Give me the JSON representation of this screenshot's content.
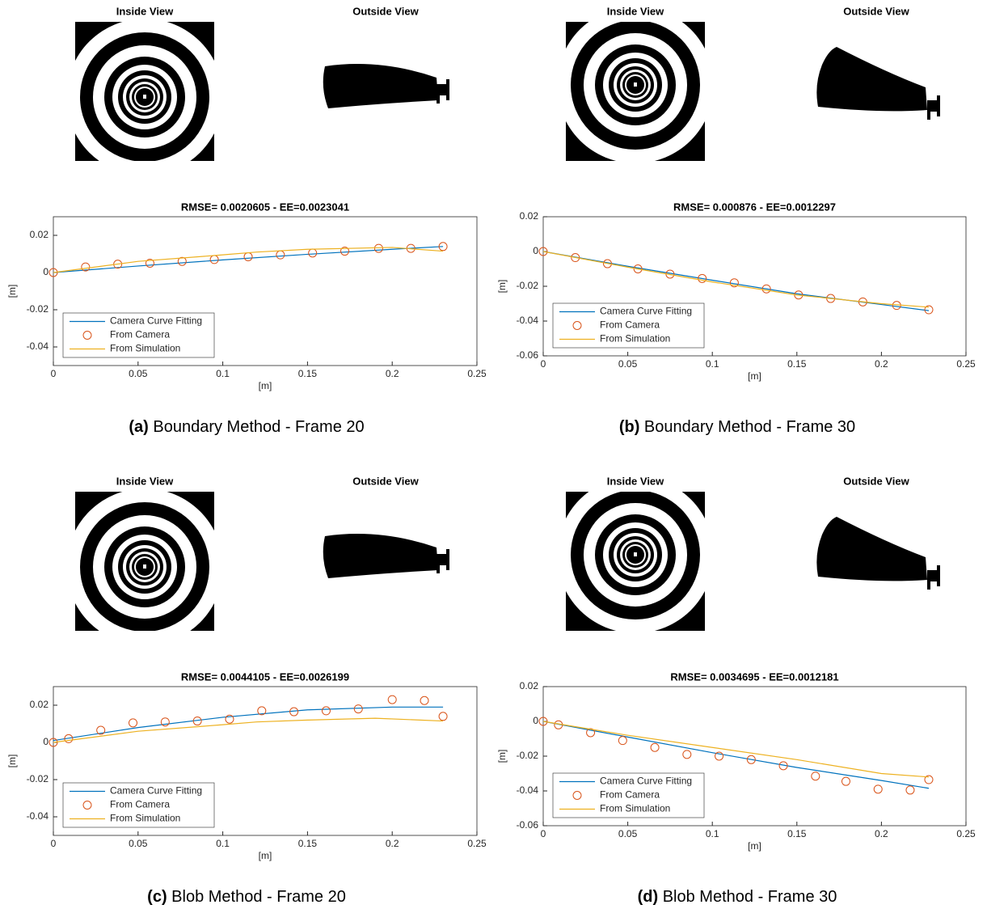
{
  "chart_data": [
    {
      "type": "line",
      "image_titles": [
        "Inside View",
        "Outside View"
      ],
      "title": "RMSE= 0.0020605 - EE=0.0023041",
      "xlabel": "[m]",
      "ylabel": "[m]",
      "xlim": [
        0,
        0.25
      ],
      "ylim": [
        -0.05,
        0.03
      ],
      "xticks": [
        0,
        0.05,
        0.1,
        0.15,
        0.2,
        0.25
      ],
      "yticks": [
        -0.04,
        -0.02,
        0,
        0.02
      ],
      "legend": "lower left",
      "series": [
        {
          "name": "Camera Curve Fitting",
          "mode": "line",
          "color": "#0072bd",
          "x": [
            0,
            0.05,
            0.1,
            0.15,
            0.2,
            0.23
          ],
          "values": [
            0,
            0.0035,
            0.0068,
            0.0098,
            0.0125,
            0.014
          ]
        },
        {
          "name": "From Camera",
          "mode": "markers",
          "color": "#d95319",
          "x": [
            0,
            0.019,
            0.038,
            0.057,
            0.076,
            0.095,
            0.115,
            0.134,
            0.153,
            0.172,
            0.192,
            0.211,
            0.23
          ],
          "values": [
            0,
            0.003,
            0.0045,
            0.005,
            0.006,
            0.007,
            0.0085,
            0.0095,
            0.0105,
            0.0115,
            0.013,
            0.013,
            0.014
          ]
        },
        {
          "name": "From Simulation",
          "mode": "line",
          "color": "#edb120",
          "x": [
            0,
            0.05,
            0.1,
            0.12,
            0.15,
            0.2,
            0.23
          ],
          "values": [
            0,
            0.006,
            0.0095,
            0.011,
            0.0125,
            0.0135,
            0.0115
          ]
        }
      ],
      "caption_label": "(a)",
      "caption": "Boundary Method - Frame 20"
    },
    {
      "type": "line",
      "image_titles": [
        "Inside View",
        "Outside View"
      ],
      "title": "RMSE= 0.000876 - EE=0.0012297",
      "xlabel": "[m]",
      "ylabel": "[m]",
      "xlim": [
        0,
        0.25
      ],
      "ylim": [
        -0.06,
        0.02
      ],
      "xticks": [
        0,
        0.05,
        0.1,
        0.15,
        0.2,
        0.25
      ],
      "yticks": [
        -0.06,
        -0.04,
        -0.02,
        0,
        0.02
      ],
      "legend": "lower left",
      "series": [
        {
          "name": "Camera Curve Fitting",
          "mode": "line",
          "color": "#0072bd",
          "x": [
            0,
            0.05,
            0.1,
            0.15,
            0.2,
            0.228
          ],
          "values": [
            0,
            -0.0085,
            -0.0165,
            -0.0243,
            -0.0305,
            -0.034
          ]
        },
        {
          "name": "From Camera",
          "mode": "markers",
          "color": "#d95319",
          "x": [
            0,
            0.019,
            0.038,
            0.056,
            0.075,
            0.094,
            0.113,
            0.132,
            0.151,
            0.17,
            0.189,
            0.209,
            0.228
          ],
          "values": [
            0,
            -0.0035,
            -0.007,
            -0.01,
            -0.013,
            -0.0155,
            -0.018,
            -0.0215,
            -0.025,
            -0.027,
            -0.029,
            -0.031,
            -0.0335
          ]
        },
        {
          "name": "From Simulation",
          "mode": "line",
          "color": "#edb120",
          "x": [
            0,
            0.05,
            0.1,
            0.15,
            0.2,
            0.228
          ],
          "values": [
            0,
            -0.009,
            -0.0175,
            -0.025,
            -0.03,
            -0.032
          ]
        }
      ],
      "caption_label": "(b)",
      "caption": "Boundary Method - Frame 30"
    },
    {
      "type": "line",
      "image_titles": [
        "Inside View",
        "Outside View"
      ],
      "title": "RMSE= 0.0044105 - EE=0.0026199",
      "xlabel": "[m]",
      "ylabel": "[m]",
      "xlim": [
        0,
        0.25
      ],
      "ylim": [
        -0.05,
        0.03
      ],
      "xticks": [
        0,
        0.05,
        0.1,
        0.15,
        0.2,
        0.25
      ],
      "yticks": [
        -0.04,
        -0.02,
        0,
        0.02
      ],
      "legend": "lower left",
      "series": [
        {
          "name": "Camera Curve Fitting",
          "mode": "line",
          "color": "#0072bd",
          "x": [
            0,
            0.05,
            0.1,
            0.15,
            0.2,
            0.23
          ],
          "values": [
            0.001,
            0.008,
            0.0135,
            0.0175,
            0.019,
            0.019
          ]
        },
        {
          "name": "From Camera",
          "mode": "markers",
          "color": "#d95319",
          "x": [
            0,
            0.009,
            0.028,
            0.047,
            0.066,
            0.085,
            0.104,
            0.123,
            0.142,
            0.161,
            0.18,
            0.2,
            0.219,
            0.23
          ],
          "values": [
            0,
            0.002,
            0.0065,
            0.0105,
            0.011,
            0.0115,
            0.0125,
            0.017,
            0.0165,
            0.017,
            0.018,
            0.023,
            0.0225,
            0.014
          ]
        },
        {
          "name": "From Simulation",
          "mode": "line",
          "color": "#edb120",
          "x": [
            0,
            0.05,
            0.1,
            0.12,
            0.15,
            0.19,
            0.23
          ],
          "values": [
            0,
            0.006,
            0.0095,
            0.011,
            0.012,
            0.013,
            0.0115
          ]
        }
      ],
      "caption_label": "(c)",
      "caption": "Blob Method - Frame 20"
    },
    {
      "type": "line",
      "image_titles": [
        "Inside View",
        "Outside View"
      ],
      "title": "RMSE= 0.0034695 - EE=0.0012181",
      "xlabel": "[m]",
      "ylabel": "[m]",
      "xlim": [
        0,
        0.25
      ],
      "ylim": [
        -0.06,
        0.02
      ],
      "xticks": [
        0,
        0.05,
        0.1,
        0.15,
        0.2,
        0.25
      ],
      "yticks": [
        -0.06,
        -0.04,
        -0.02,
        0,
        0.02
      ],
      "legend": "lower left",
      "series": [
        {
          "name": "Camera Curve Fitting",
          "mode": "line",
          "color": "#0072bd",
          "x": [
            0,
            0.05,
            0.1,
            0.15,
            0.2,
            0.228
          ],
          "values": [
            0,
            -0.009,
            -0.018,
            -0.0265,
            -0.034,
            -0.0385
          ]
        },
        {
          "name": "From Camera",
          "mode": "markers",
          "color": "#d95319",
          "x": [
            0,
            0.009,
            0.028,
            0.047,
            0.066,
            0.085,
            0.104,
            0.123,
            0.142,
            0.161,
            0.179,
            0.198,
            0.217,
            0.228
          ],
          "values": [
            0,
            -0.002,
            -0.0065,
            -0.011,
            -0.015,
            -0.019,
            -0.02,
            -0.022,
            -0.0255,
            -0.0315,
            -0.0345,
            -0.039,
            -0.0395,
            -0.0335
          ]
        },
        {
          "name": "From Simulation",
          "mode": "line",
          "color": "#edb120",
          "x": [
            0,
            0.05,
            0.1,
            0.15,
            0.2,
            0.228
          ],
          "values": [
            0,
            -0.008,
            -0.015,
            -0.022,
            -0.03,
            -0.032
          ]
        }
      ],
      "caption_label": "(d)",
      "caption": "Blob Method - Frame 30"
    }
  ]
}
